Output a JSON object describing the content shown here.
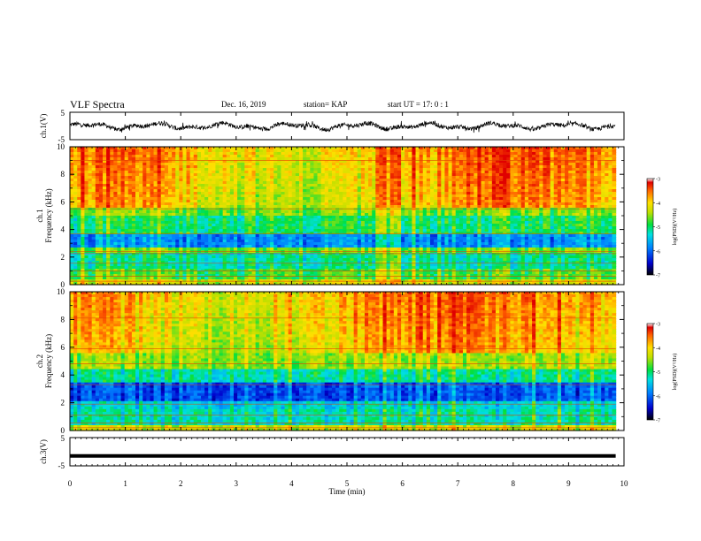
{
  "header": {
    "title": "VLF Spectra",
    "date": "Dec. 16, 2019",
    "station": "station= KAP",
    "start": "start  UT =   17: 0  : 1"
  },
  "chart_data": [
    {
      "type": "line",
      "panel": "ch1-waveform",
      "ylabel": "ch.1(V)",
      "ylim": [
        -5,
        5
      ],
      "yticks": [
        "5",
        "-5"
      ],
      "xlim": [
        0,
        10
      ],
      "series": [
        {
          "description_values_are_noisy_waveform": true,
          "amplitude_range": [
            -5,
            5
          ]
        }
      ]
    },
    {
      "type": "heatmap",
      "panel": "ch1-spectrogram",
      "ylabel": "ch.1\nFrequency (kHz)",
      "ylabel_top": "ch.1",
      "ylabel_bottom": "Frequency  (kHz)",
      "ylim": [
        0,
        10
      ],
      "yticks": [
        "0",
        "2",
        "4",
        "6",
        "8",
        "10"
      ],
      "xlim": [
        0,
        9.85
      ],
      "colorbar": {
        "label": "log(PSD)(V²/Hz)",
        "range": [
          -7,
          -3
        ],
        "ticks": [
          "-3",
          "-4",
          "-5",
          "-6",
          "-7"
        ]
      }
    },
    {
      "type": "heatmap",
      "panel": "ch2-spectrogram",
      "ylabel_top": "ch.2",
      "ylabel_bottom": "Frequency  (kHz)",
      "ylim": [
        0,
        10
      ],
      "yticks": [
        "0",
        "2",
        "4",
        "6",
        "8",
        "10"
      ],
      "xlim": [
        0,
        9.85
      ],
      "colorbar": {
        "label": "log(PSD)(V²/Hz)",
        "range": [
          -7,
          -3
        ],
        "ticks": [
          "-3",
          "-4",
          "-5",
          "-6",
          "-7"
        ]
      }
    },
    {
      "type": "line",
      "panel": "ch3-waveform",
      "ylabel": "ch.3(V)",
      "ylim": [
        -5,
        5
      ],
      "yticks": [
        "5",
        "-5"
      ],
      "xlim": [
        0,
        10
      ],
      "xlabel": "Time  (min)",
      "xticks": [
        "0",
        "1",
        "2",
        "3",
        "4",
        "5",
        "6",
        "7",
        "8",
        "9",
        "10"
      ],
      "series": [
        {
          "constant_value": -1.5
        }
      ]
    }
  ]
}
